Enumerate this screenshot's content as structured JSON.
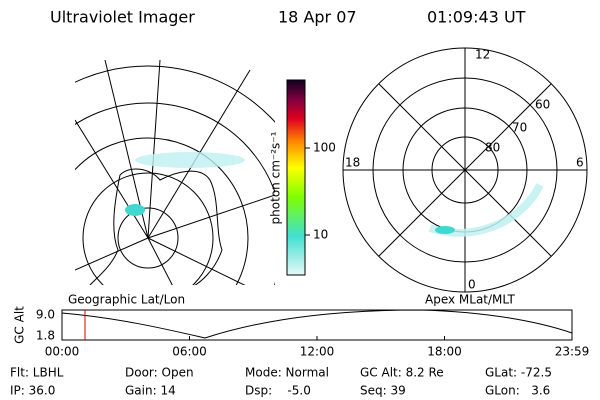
{
  "header": {
    "instrument": "Ultraviolet Imager",
    "date": "18 Apr 07",
    "time": "01:09:43 UT"
  },
  "colorbar": {
    "label": "photon cm⁻²s⁻¹",
    "ticks": [
      "100",
      "10"
    ]
  },
  "polar": {
    "mlt_labels": [
      "12",
      "18",
      "6",
      "0"
    ],
    "mlat_labels": [
      "60",
      "70",
      "80"
    ]
  },
  "timeline": {
    "left_title": "Geographic Lat/Lon",
    "right_title": "Apex MLat/MLT",
    "y_label": "GC Alt",
    "y_ticks": [
      "9.0",
      "1.8"
    ],
    "x_ticks": [
      "00:00",
      "06:00",
      "12:00",
      "18:00",
      "23:59"
    ]
  },
  "footer": {
    "rows": [
      [
        "Flt: LBHL",
        "Door: Open",
        "Mode: Normal",
        "GC Alt: 8.2 Re",
        "GLat: -72.5"
      ],
      [
        "IP: 36.0",
        "Gain: 14",
        "Dsp:    -5.0",
        "Seq: 39",
        "GLon:   3.6"
      ]
    ]
  }
}
